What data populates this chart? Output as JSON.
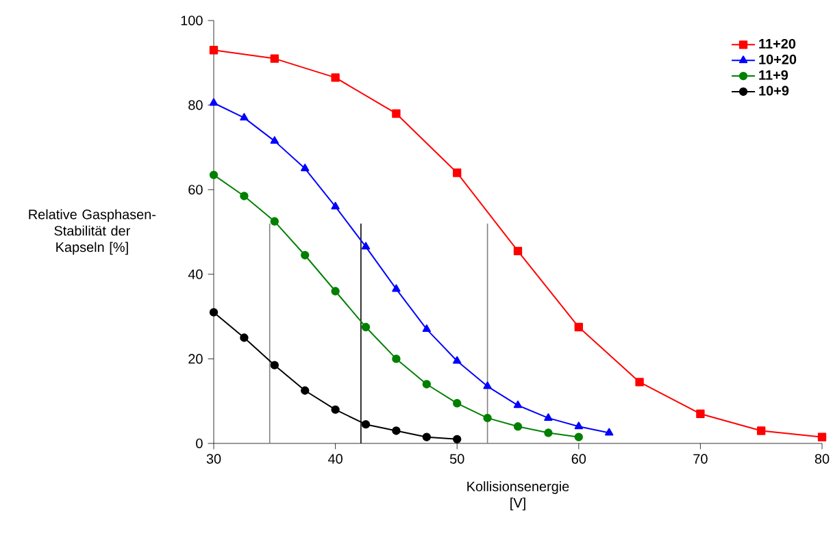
{
  "chart_data": {
    "type": "line",
    "xlabel": "Kollisionsenergie [V]",
    "ylabel": "Relative Gasphasen-Stabilität der Kapseln [%]",
    "xlim": [
      30,
      80
    ],
    "xticks": [
      30,
      40,
      50,
      60,
      70,
      80
    ],
    "ylim": [
      0,
      100
    ],
    "yticks": [
      0,
      20,
      40,
      60,
      80,
      100
    ],
    "legend": "top right",
    "series": [
      {
        "name": "11+20",
        "color": "#ff0000",
        "marker": "square",
        "x": [
          30,
          35,
          40,
          45,
          50,
          55,
          60,
          65,
          70,
          75,
          80
        ],
        "values": [
          93,
          91,
          86.5,
          78,
          64,
          45.5,
          27.5,
          14.5,
          7,
          3,
          1.5
        ]
      },
      {
        "name": "10+20",
        "color": "#0000ff",
        "marker": "triangle",
        "x": [
          30,
          32.5,
          35,
          37.5,
          40,
          42.5,
          45,
          47.5,
          50,
          52.5,
          55,
          57.5,
          60,
          62.5
        ],
        "values": [
          80.5,
          77,
          71.5,
          65,
          56,
          46.5,
          36.5,
          27,
          19.5,
          13.5,
          9,
          6,
          4,
          2.5
        ]
      },
      {
        "name": "11+9",
        "color": "#008000",
        "marker": "circle",
        "x": [
          30,
          32.5,
          35,
          37.5,
          40,
          42.5,
          45,
          47.5,
          50,
          52.5,
          55,
          57.5,
          60
        ],
        "values": [
          63.5,
          58.5,
          52.5,
          44.5,
          36,
          27.5,
          20,
          14,
          9.5,
          6,
          4,
          2.5,
          1.5
        ]
      },
      {
        "name": "10+9",
        "color": "#000000",
        "marker": "circle",
        "x": [
          30,
          32.5,
          35,
          37.5,
          40,
          42.5,
          45,
          47.5,
          50
        ],
        "values": [
          31,
          25,
          18.5,
          12.5,
          8,
          4.5,
          3,
          1.5,
          1
        ]
      }
    ],
    "ref_lines": [
      {
        "axis": "x",
        "value": 34.6,
        "color": "#808080"
      },
      {
        "axis": "x",
        "value": 42.1,
        "color": "#000000"
      },
      {
        "axis": "x",
        "value": 52.5,
        "color": "#808080"
      }
    ]
  }
}
